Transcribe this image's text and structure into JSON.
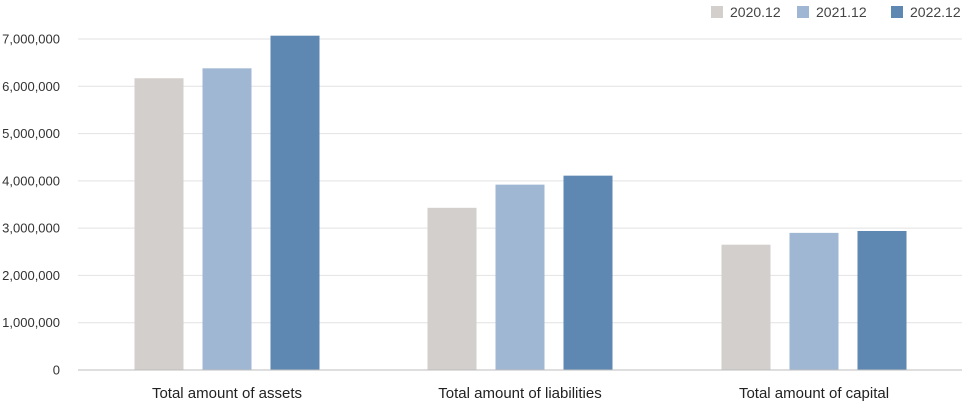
{
  "chart_data": {
    "type": "bar",
    "categories": [
      "Total amount of assets",
      "Total amount of liabilities",
      "Total amount of capital"
    ],
    "series": [
      {
        "name": "2020.12",
        "color": "#d3cfcc",
        "values": [
          6170000,
          3430000,
          2650000
        ]
      },
      {
        "name": "2021.12",
        "color": "#9fb7d2",
        "values": [
          6380000,
          3920000,
          2900000
        ]
      },
      {
        "name": "2022.12",
        "color": "#5e87b1",
        "values": [
          7070000,
          4110000,
          2940000
        ]
      }
    ],
    "yticks": [
      "0",
      "1,000,000",
      "2,000,000",
      "3,000,000",
      "4,000,000",
      "5,000,000",
      "6,000,000",
      "7,000,000"
    ],
    "ylim": [
      0,
      7000000
    ],
    "grid": true,
    "legend_position": "top-right"
  }
}
